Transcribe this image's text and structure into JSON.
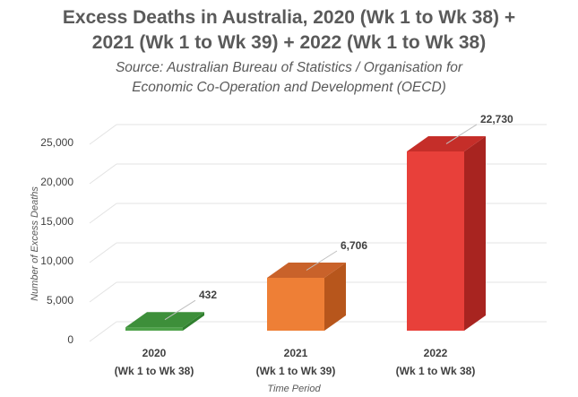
{
  "chart_data": {
    "type": "bar",
    "title_line1": "Excess Deaths in Australia, 2020 (Wk 1 to Wk 38) +",
    "title_line2": "2021 (Wk 1 to Wk 39) + 2022 (Wk 1 to Wk 38)",
    "subtitle_line1": "Source: Australian Bureau of Statistics / Organisation for",
    "subtitle_line2": "Economic Co-Operation and Development (OECD)",
    "xlabel": "Time Period",
    "ylabel": "Number of Excess Deaths",
    "ylim": [
      0,
      25000
    ],
    "yticks": [
      0,
      5000,
      10000,
      15000,
      20000,
      25000
    ],
    "ytick_labels": [
      "0",
      "5,000",
      "10,000",
      "15,000",
      "20,000",
      "25,000"
    ],
    "categories": [
      {
        "line1": "2020",
        "line2": "(Wk 1 to Wk 38)"
      },
      {
        "line1": "2021",
        "line2": "(Wk 1 to Wk 39)"
      },
      {
        "line1": "2022",
        "line2": "(Wk 1 to Wk 38)"
      }
    ],
    "values": [
      432,
      6706,
      22730
    ],
    "data_labels": [
      "432",
      "6,706",
      "22,730"
    ],
    "colors": [
      {
        "front": "#4ea24a",
        "side": "#2f7f2e",
        "top": "#3d8f3a"
      },
      {
        "front": "#ee7f36",
        "side": "#b7561c",
        "top": "#c9622a"
      },
      {
        "front": "#e8403a",
        "side": "#a82420",
        "top": "#c52e29"
      }
    ]
  }
}
